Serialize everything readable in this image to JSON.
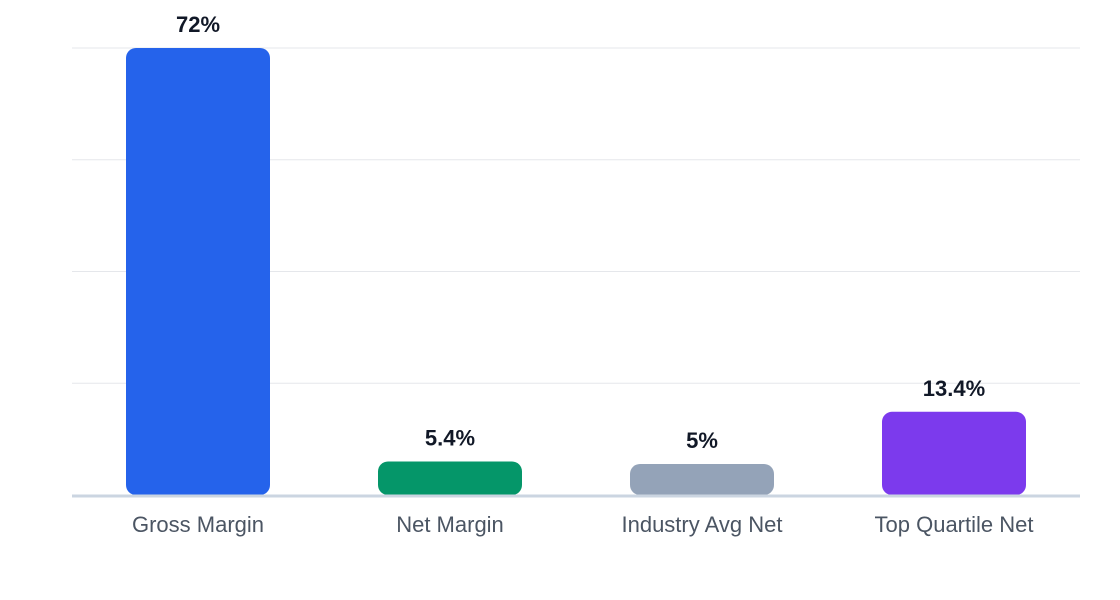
{
  "chart_data": {
    "type": "bar",
    "categories": [
      "Gross Margin",
      "Net Margin",
      "Industry Avg Net",
      "Top Quartile Net"
    ],
    "values": [
      72,
      5.4,
      5,
      13.4
    ],
    "value_labels": [
      "72%",
      "5.4%",
      "5%",
      "13.4%"
    ],
    "colors": [
      "#2563eb",
      "#059669",
      "#94a3b8",
      "#7c3aed"
    ],
    "ylim": [
      0,
      72
    ],
    "grid": true,
    "title": "",
    "xlabel": "",
    "ylabel": ""
  }
}
